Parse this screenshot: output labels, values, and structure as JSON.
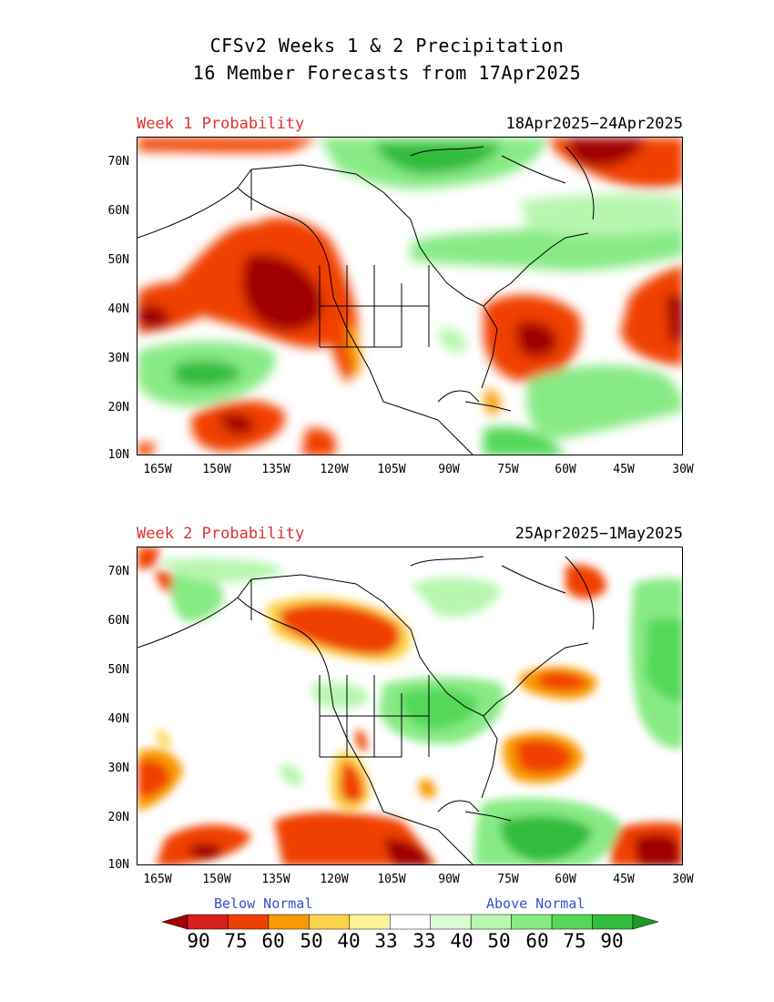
{
  "title": {
    "line1": "CFSv2 Weeks 1 & 2 Precipitation",
    "line2": "16 Member Forecasts from 17Apr2025"
  },
  "panels": [
    {
      "label": "Week 1 Probability",
      "dates": "18Apr2025−24Apr2025"
    },
    {
      "label": "Week 2 Probability",
      "dates": "25Apr2025−1May2025"
    }
  ],
  "axes": {
    "lat_ticks": [
      "70N",
      "60N",
      "50N",
      "40N",
      "30N",
      "20N",
      "10N"
    ],
    "lon_ticks": [
      "165W",
      "150W",
      "135W",
      "120W",
      "105W",
      "90W",
      "75W",
      "60W",
      "45W",
      "30W"
    ]
  },
  "colorbar": {
    "below_label": "Below Normal",
    "above_label": "Above Normal",
    "labels": [
      "90",
      "75",
      "60",
      "50",
      "40",
      "33",
      "33",
      "40",
      "50",
      "60",
      "75",
      "90"
    ],
    "colors": [
      "#a00000",
      "#d81e1e",
      "#f04000",
      "#f89a00",
      "#fcd34a",
      "#fdf39a",
      "#ffffff",
      "#dbfbd4",
      "#b8f6b0",
      "#88ea85",
      "#55d858",
      "#33bb3c",
      "#1b9a23"
    ],
    "label_colors": {
      "title": "#e03030",
      "legend_text": "#3a4fd0"
    }
  }
}
